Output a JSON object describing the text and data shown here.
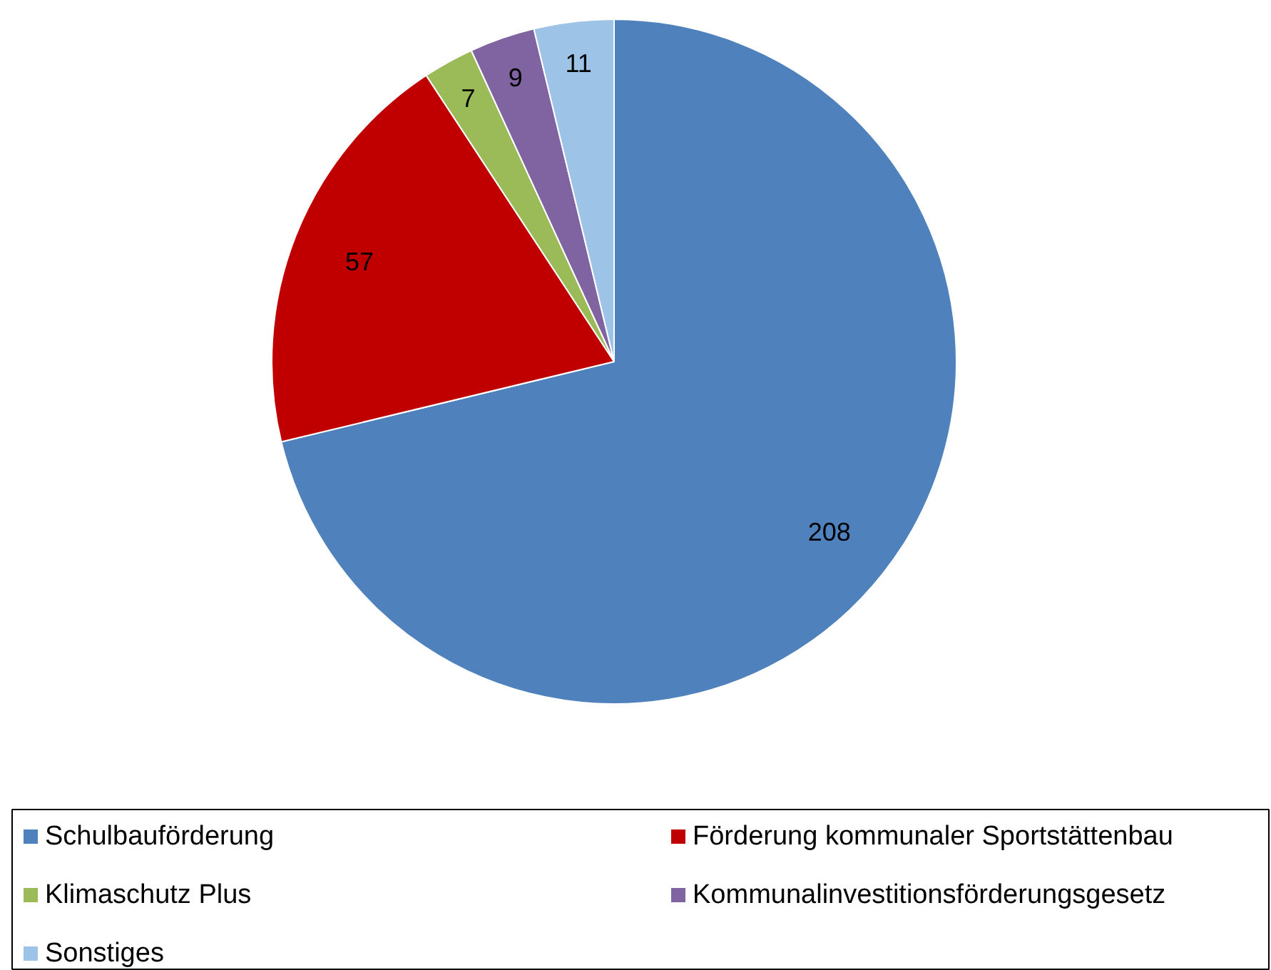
{
  "chart_data": {
    "type": "pie",
    "categories": [
      "Schulbauförderung",
      "Förderung kommunaler Sportstättenbau",
      "Klimaschutz Plus",
      "Kommunalinvestitionsförderungsgesetz",
      "Sonstiges"
    ],
    "values": [
      208,
      57,
      7,
      9,
      11
    ],
    "colors": [
      "#4f81bd",
      "#c00000",
      "#9bbb59",
      "#8064a2",
      "#9dc3e6"
    ],
    "data_labels": true,
    "legend": "bottom"
  }
}
